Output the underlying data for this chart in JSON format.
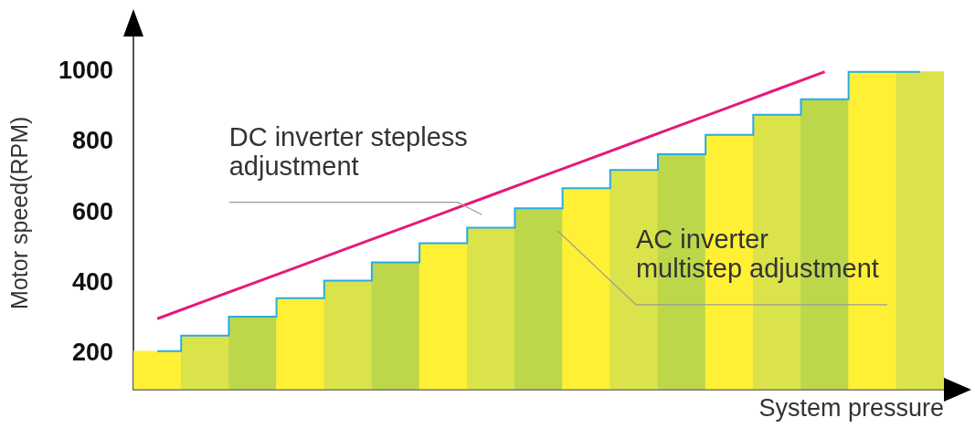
{
  "chart_data": {
    "type": "bar",
    "xlabel": "System pressure",
    "ylabel": "Motor speed(RPM)",
    "categories": [
      null,
      null,
      null,
      null,
      null,
      null,
      null,
      null,
      null,
      null,
      null,
      null,
      null,
      null,
      null,
      null,
      null
    ],
    "series": [
      {
        "colors": [
          "#fff036",
          "#dbe34a",
          "#bdd74b",
          "#fff036",
          "#dbe34a",
          "#bdd74b",
          "#fff036",
          "#dbe34a",
          "#bdd74b",
          "#fff036",
          "#dbe34a",
          "#bdd74b",
          "#fff036",
          "#dbe34a",
          "#bdd74b",
          "#fff036",
          "#dbe34a"
        ],
        "values": [
          208,
          252,
          306,
          358,
          408,
          460,
          514,
          558,
          613,
          670,
          722,
          766,
          821,
          878,
          922,
          1000,
          1000
        ]
      },
      {
        "type": "step",
        "color": "#29abe2",
        "values": [
          208,
          252,
          306,
          358,
          408,
          460,
          514,
          558,
          613,
          670,
          722,
          766,
          821,
          878,
          922,
          1000,
          1000
        ]
      },
      {
        "type": "line",
        "color": "#e6197a",
        "values": [
          300,
          350,
          400,
          450,
          500,
          550,
          600,
          650,
          700,
          750,
          800,
          850,
          900,
          950,
          1000,
          null,
          null
        ]
      }
    ],
    "ylim": [
      100,
      1100
    ],
    "yticks": [
      200,
      400,
      600,
      800,
      1000
    ],
    "grid": false,
    "legend": false,
    "tick_labels": "y",
    "annotations": [
      "DC inverter stepless\nadjustment",
      "AC inverter\nmultistep adjustment"
    ]
  }
}
